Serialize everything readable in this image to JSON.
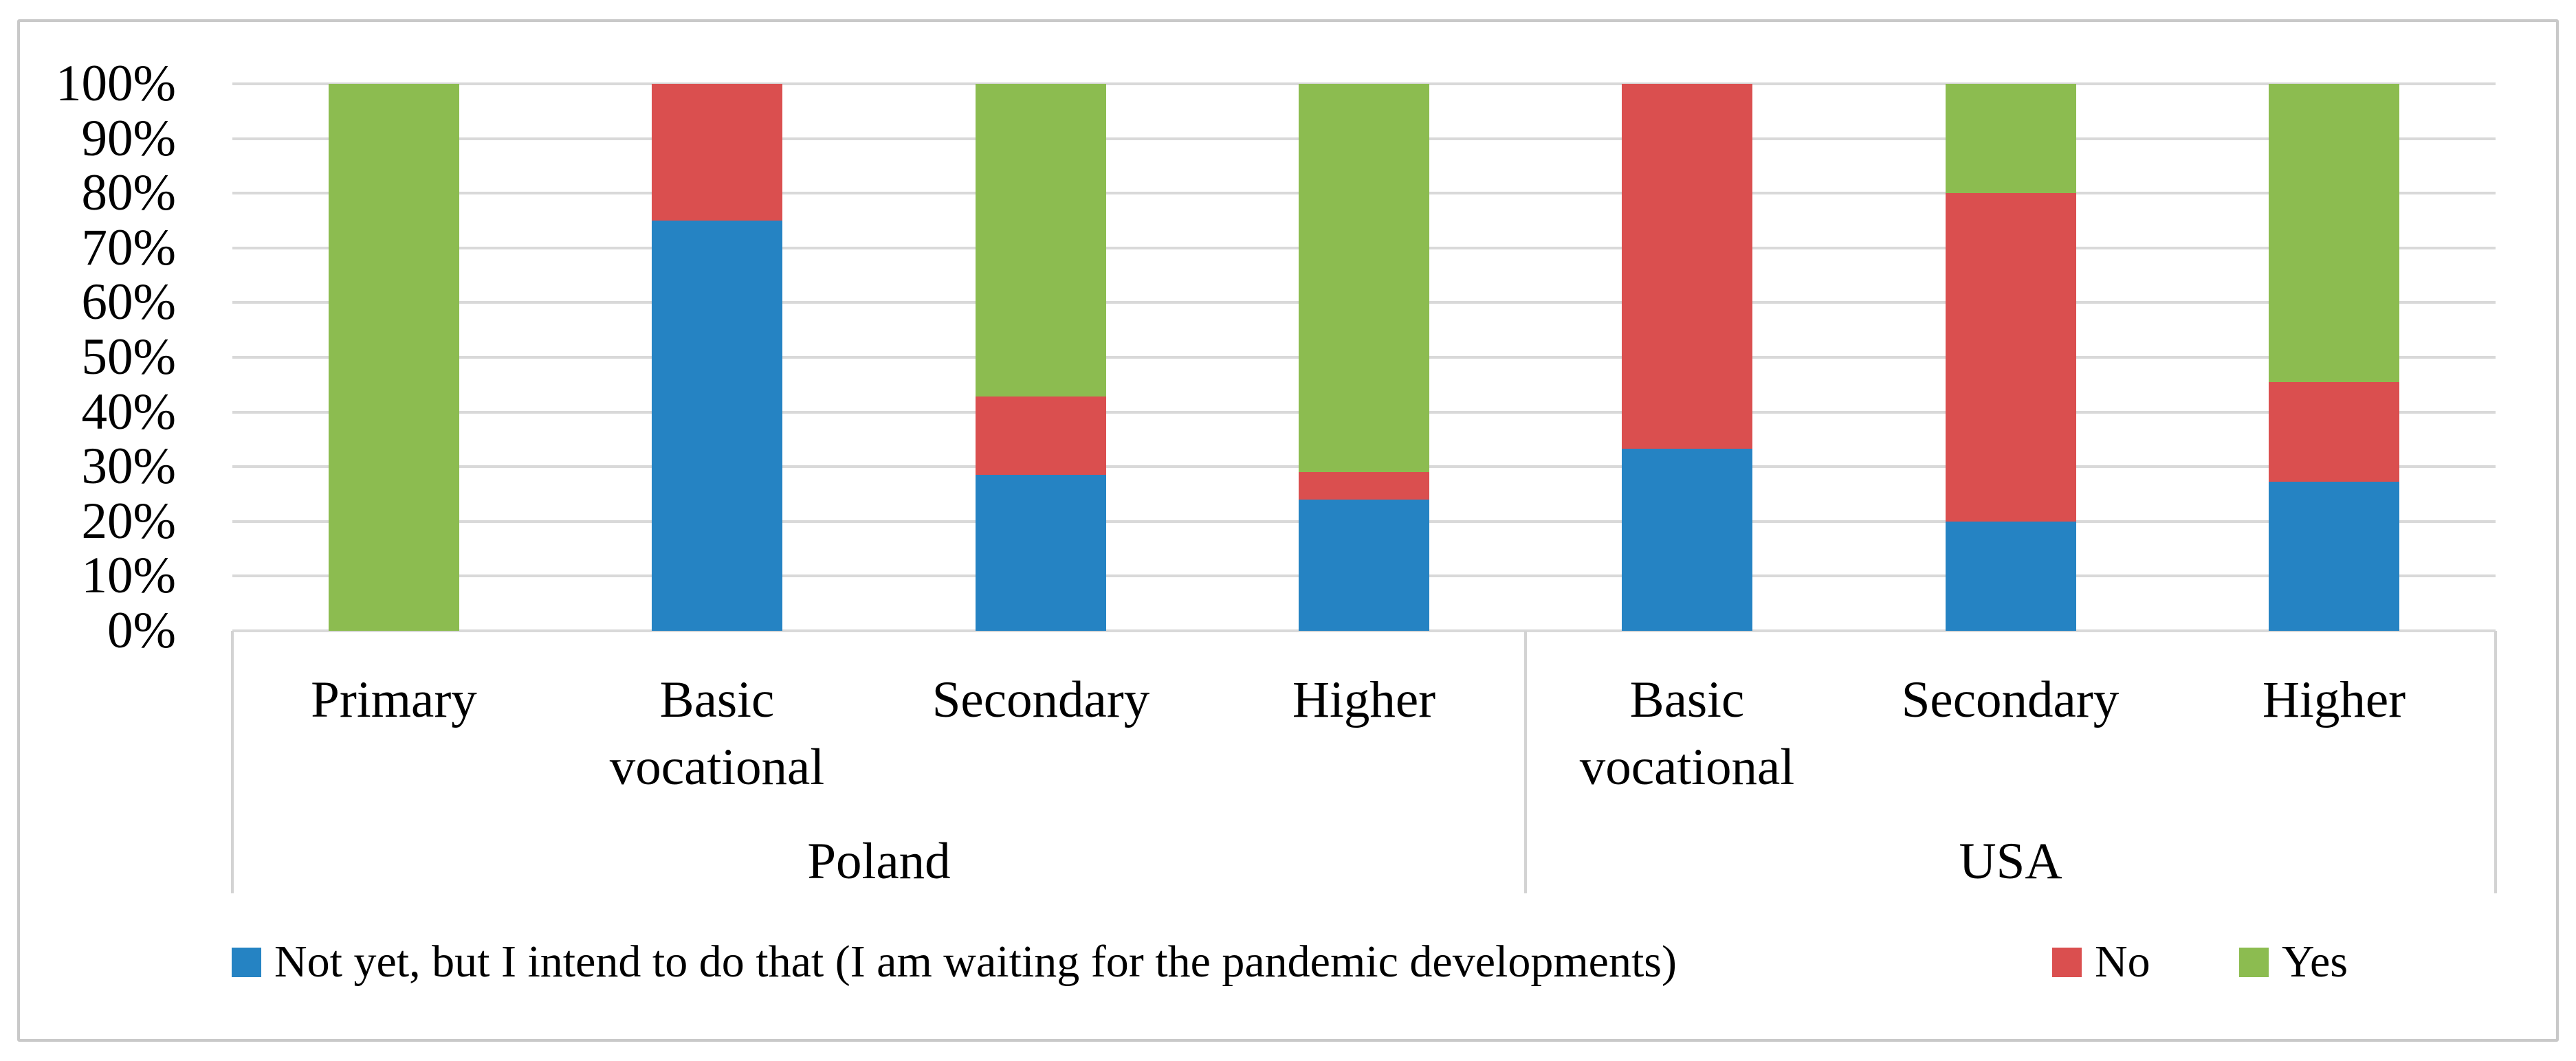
{
  "figure": {
    "background": "#FFFFFF",
    "border_color": "#C9C9C9",
    "gridline_color": "#D9D9D9",
    "divider_color": "#D3D3D3"
  },
  "chart_data": {
    "type": "bar",
    "subtype": "100%-stacked-column",
    "grid": true,
    "legend_position": "bottom",
    "categories": [
      "Primary",
      "Basic vocational",
      "Secondary",
      "Higher",
      "Basic vocational",
      "Secondary",
      "Higher"
    ],
    "group_labels": [
      {
        "label": "Poland",
        "start": 0,
        "count": 4
      },
      {
        "label": "USA",
        "start": 4,
        "count": 3
      }
    ],
    "series": [
      {
        "name": "Not yet, but I intend to do that (I am waiting for the pandemic developments)",
        "color": "#2583C3",
        "values": [
          0,
          75,
          28.6,
          24,
          33.3,
          20,
          27.3
        ]
      },
      {
        "name": "No",
        "color": "#DA4F4F",
        "values": [
          0,
          25,
          14.3,
          5,
          66.7,
          60,
          18.2
        ]
      },
      {
        "name": "Yes",
        "color": "#8CBC50",
        "values": [
          100,
          0,
          57.1,
          71,
          0,
          20,
          54.5
        ]
      }
    ],
    "y_axis": {
      "min": 0,
      "max": 100,
      "ticks": [
        "0%",
        "10%",
        "20%",
        "30%",
        "40%",
        "50%",
        "60%",
        "70%",
        "80%",
        "90%",
        "100%"
      ]
    }
  }
}
